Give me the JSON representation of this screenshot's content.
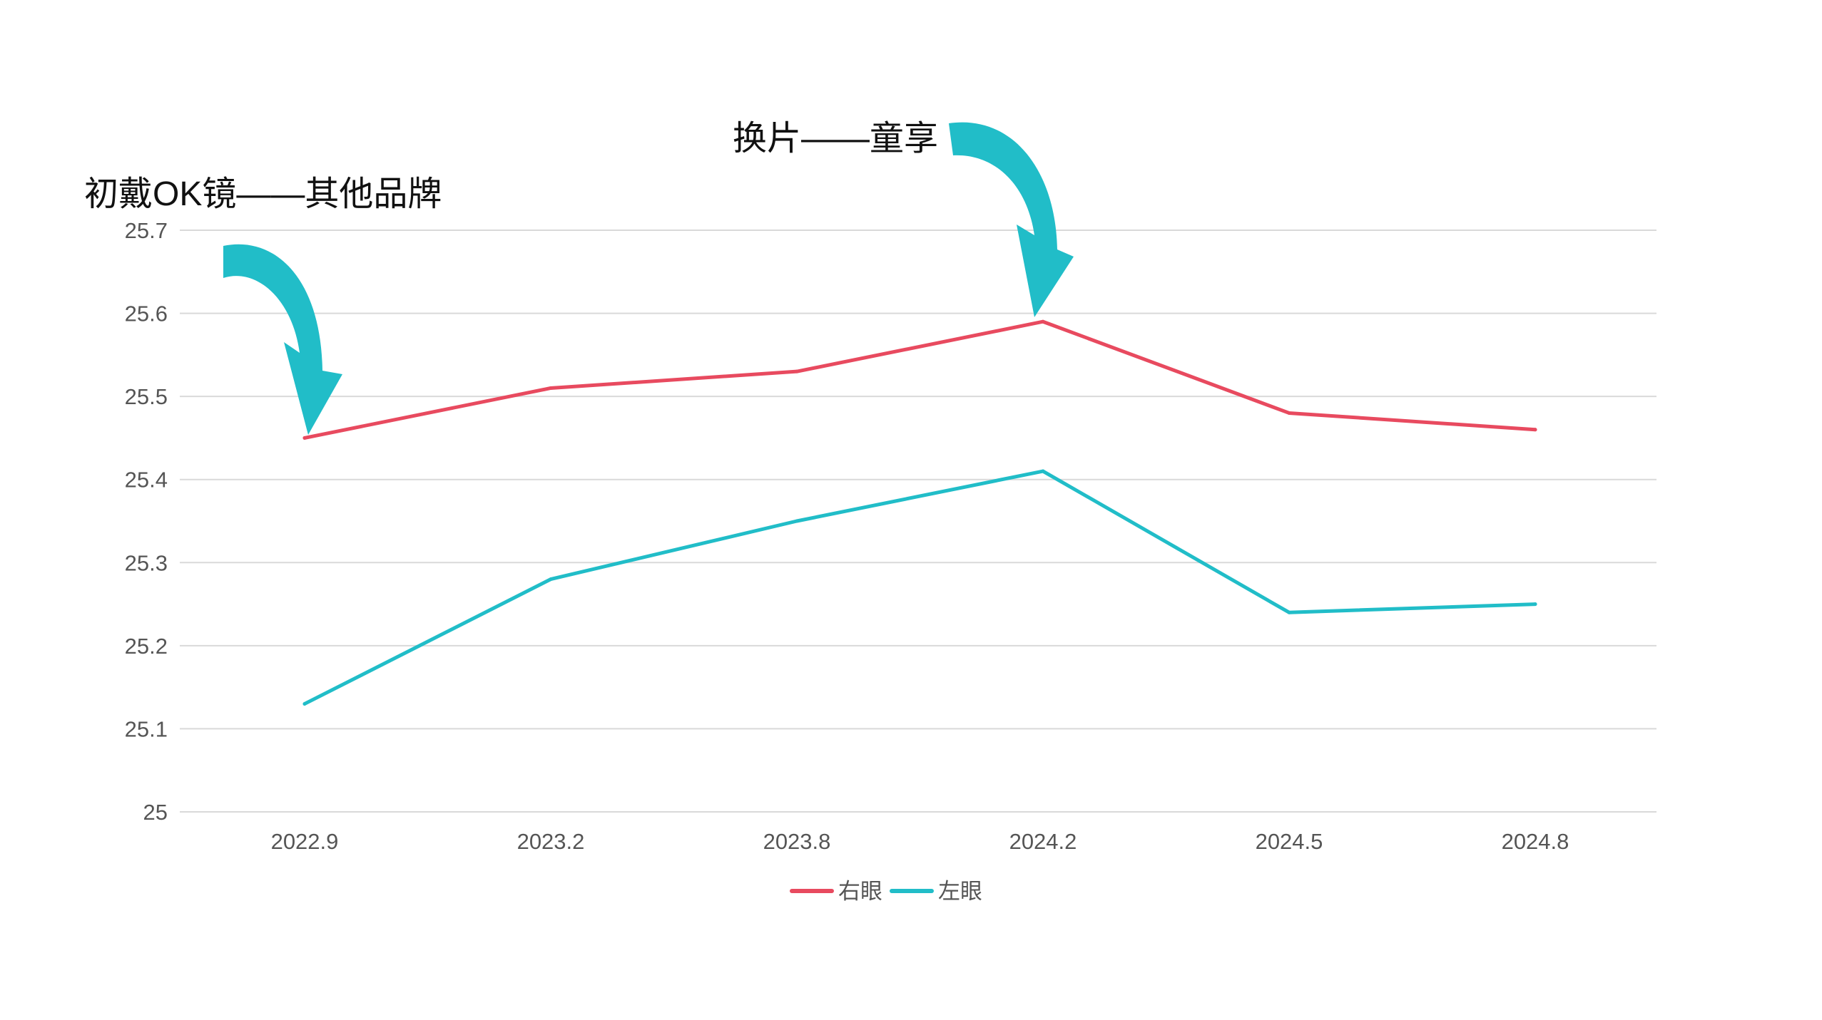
{
  "chart_data": {
    "type": "line",
    "categories": [
      "2022.9",
      "2023.2",
      "2023.8",
      "2024.2",
      "2024.5",
      "2024.8"
    ],
    "series": [
      {
        "name": "右眼",
        "color": "#e84a5f",
        "values": [
          25.45,
          25.51,
          25.53,
          25.59,
          25.48,
          25.46
        ]
      },
      {
        "name": "左眼",
        "color": "#21bdc8",
        "values": [
          25.13,
          25.28,
          25.35,
          25.41,
          25.24,
          25.25
        ]
      }
    ],
    "ylim": [
      25,
      25.7
    ],
    "yticks": [
      "25",
      "25.1",
      "25.2",
      "25.3",
      "25.4",
      "25.5",
      "25.6",
      "25.7"
    ],
    "grid": true,
    "legend_position": "bottom-center",
    "annotations": [
      {
        "text": "初戴OK镜——其他品牌",
        "category": "2022.9",
        "series": "右眼",
        "arrow_color": "#21bdc8"
      },
      {
        "text": "换片——童享",
        "category": "2024.2",
        "series": "右眼",
        "arrow_color": "#21bdc8"
      }
    ]
  }
}
